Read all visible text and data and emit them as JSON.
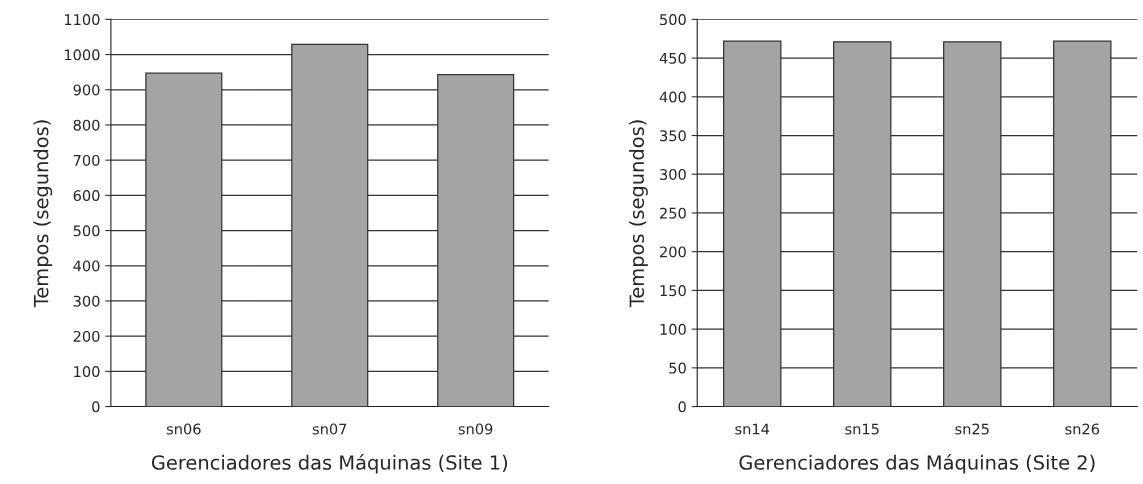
{
  "chart_data": [
    {
      "type": "bar",
      "xlabel": "Gerenciadores das Máquinas (Site 1)",
      "ylabel": "Tempos (segundos)",
      "categories": [
        "sn06",
        "sn07",
        "sn09"
      ],
      "values": [
        947,
        1029,
        943
      ],
      "color": "#a4a4a4",
      "ylim": [
        0,
        1100
      ],
      "yticks": [
        0,
        100,
        200,
        300,
        400,
        500,
        600,
        700,
        800,
        900,
        1000,
        1100
      ],
      "grid": "y"
    },
    {
      "type": "bar",
      "xlabel": "Gerenciadores das Máquinas (Site 2)",
      "ylabel": "Tempos (segundos)",
      "categories": [
        "sn14",
        "sn15",
        "sn25",
        "sn26"
      ],
      "values": [
        472,
        471,
        471,
        472
      ],
      "color": "#a4a4a4",
      "ylim": [
        0,
        500
      ],
      "yticks": [
        0,
        50,
        100,
        150,
        200,
        250,
        300,
        350,
        400,
        450,
        500
      ],
      "grid": "y"
    }
  ]
}
